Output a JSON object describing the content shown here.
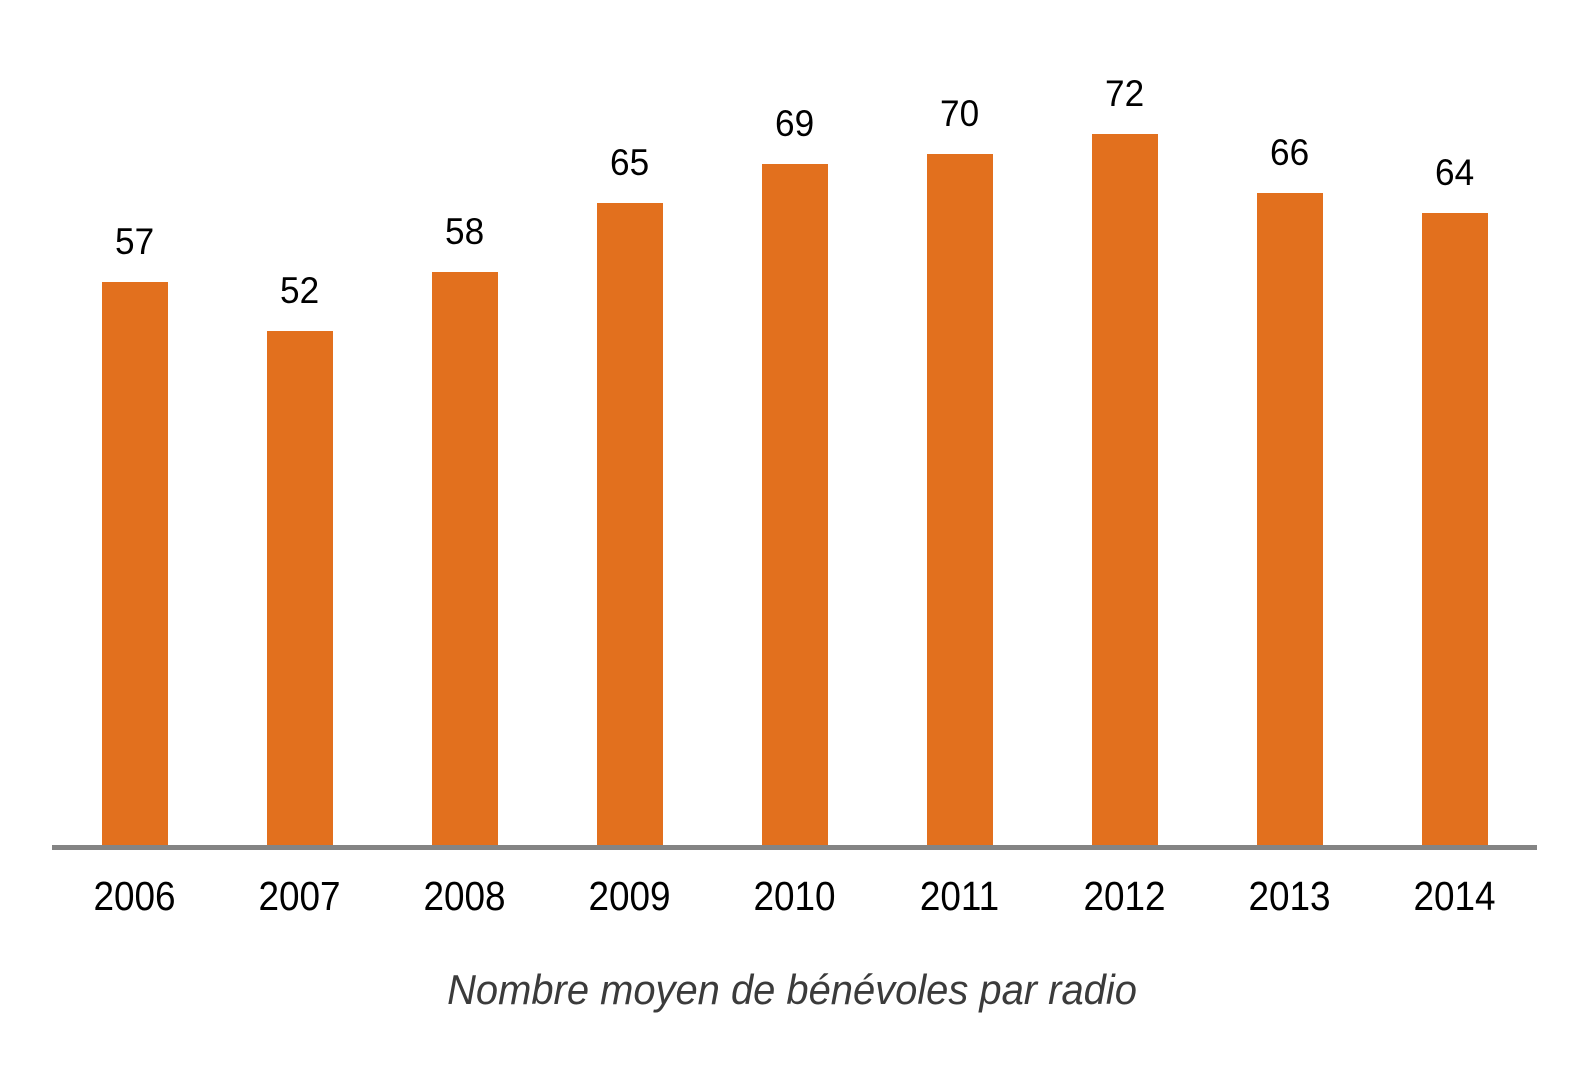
{
  "chart_data": {
    "type": "bar",
    "categories": [
      "2006",
      "2007",
      "2008",
      "2009",
      "2010",
      "2011",
      "2012",
      "2013",
      "2014"
    ],
    "values": [
      57,
      52,
      58,
      65,
      69,
      70,
      72,
      66,
      64
    ],
    "title": "Nombre moyen de bénévoles par radio",
    "title_position": "bottom",
    "title_style": "italic",
    "xlabel": "",
    "ylabel": "",
    "ylim": [
      0,
      80
    ],
    "grid": false,
    "legend": false,
    "data_labels": true,
    "bar_color": "#E2701E",
    "axis_line_color": "#848484",
    "value_label_color": "#000000",
    "tick_label_color": "#000000",
    "title_color": "#3B3B3B"
  }
}
